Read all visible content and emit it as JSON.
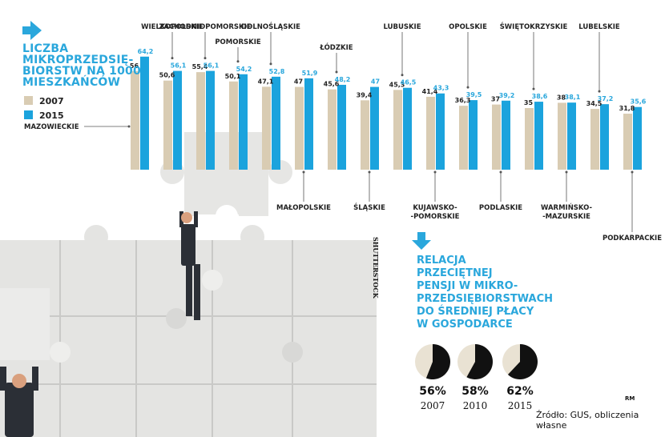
{
  "title": {
    "lines": [
      "LICZBA",
      "MIKROPRZEDSIĘ-",
      "BIORSTW NA 1000",
      "MIESZKAŃCÓW"
    ]
  },
  "legend": {
    "items": [
      {
        "label": "2007",
        "color": "#d9ccb3"
      },
      {
        "label": "2015",
        "color": "#1ba3dd"
      }
    ]
  },
  "chart_data": [
    {
      "type": "bar",
      "title": "LICZBA MIKROPRZEDSIĘBIORSTW NA 1000 MIESZKAŃCÓW",
      "categories": [
        "MAZOWIECKIE",
        "WIELKOPOLSKIE",
        "ZACHODNIOPOMORSKIE",
        "POMORSKIE",
        "DOLNOŚLĄSKIE",
        "MAŁOPOLSKIE",
        "ŁÓDZKIE",
        "ŚLĄSKIE",
        "LUBUSKIE",
        "KUJAWSKO-\n-POMORSKIE",
        "OPOLSKIE",
        "PODLASKIE",
        "ŚWIĘTOKRZYSKIE",
        "WARMIŃSKO-\n-MAZURSKIE",
        "LUBELSKIE",
        "PODKARPACKIE"
      ],
      "series": [
        {
          "name": "2007",
          "values": [
            56,
            50.6,
            55.4,
            50.1,
            47.1,
            47,
            45.6,
            39.4,
            45.3,
            41.4,
            36.3,
            37,
            35,
            38,
            34.5,
            31.8
          ],
          "labels": [
            "56",
            "50,6",
            "55,4",
            "50,1",
            "47,1",
            "47",
            "45,6",
            "39,4",
            "45,3",
            "41,4",
            "36,3",
            "37",
            "35",
            "38",
            "34,5",
            "31,8"
          ]
        },
        {
          "name": "2015",
          "values": [
            64.2,
            56.1,
            56.1,
            54.2,
            52.8,
            51.9,
            48.2,
            47,
            46.5,
            43.3,
            39.5,
            39.2,
            38.6,
            38.1,
            37.2,
            35.6
          ],
          "labels": [
            "64,2",
            "56,1",
            "56,1",
            "54,2",
            "52,8",
            "51,9",
            "48,2",
            "47",
            "46,5",
            "43,3",
            "39,5",
            "39,2",
            "38,6",
            "38,1",
            "37,2",
            "35,6"
          ]
        }
      ],
      "xlabel": "",
      "ylabel": "",
      "ylim": [
        0,
        70
      ]
    },
    {
      "type": "pie",
      "title": "RELACJA PRZECIĘTNEJ PENSJI W MIKRO-PRZEDSIĘBIORSTWACH DO ŚREDNIEJ PŁACY W GOSPODARCE",
      "categories": [
        "2007",
        "2010",
        "2015"
      ],
      "values": [
        56,
        58,
        62
      ],
      "labels": [
        "56%",
        "58%",
        "62%"
      ]
    }
  ],
  "subtitle": {
    "lines": [
      "RELACJA",
      "PRZECIĘTNEJ",
      "PENSJI W MIKRO-",
      "PRZEDSIĘBIORSTWACH",
      "DO ŚREDNIEJ PŁACY",
      "W GOSPODARCE"
    ]
  },
  "source": "Źródło: GUS, obliczenia własne",
  "credit": "RM",
  "photo_credit": "SHUTTERSTOCK",
  "colors": {
    "accent": "#2aa7dc",
    "bar2007": "#d9ccb3",
    "bar2015": "#1ba3dd",
    "pie_dark": "#111111",
    "pie_light": "#e9e2d3"
  }
}
